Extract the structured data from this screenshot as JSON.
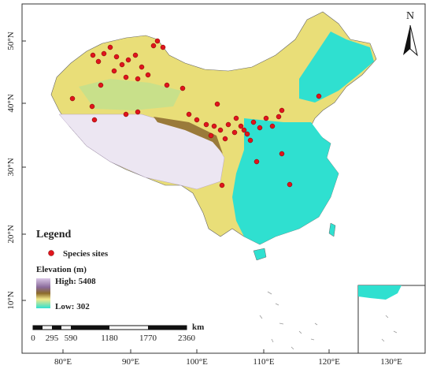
{
  "latitude_labels": [
    "50°N",
    "40°N",
    "30°N",
    "20°N",
    "10°N"
  ],
  "longitude_labels": [
    "80°E",
    "90°E",
    "100°E",
    "110°E",
    "120°E",
    "130°E"
  ],
  "north_arrow": "N",
  "legend": {
    "title": "Legend",
    "species_sites": "Species sites",
    "elevation_title": "Elevation (m)",
    "high": "High: 5408",
    "low": "Low: 302"
  },
  "scale_bar": {
    "unit": "km",
    "labels": [
      "0",
      "295",
      "590",
      "1180",
      "1770",
      "2360"
    ]
  }
}
